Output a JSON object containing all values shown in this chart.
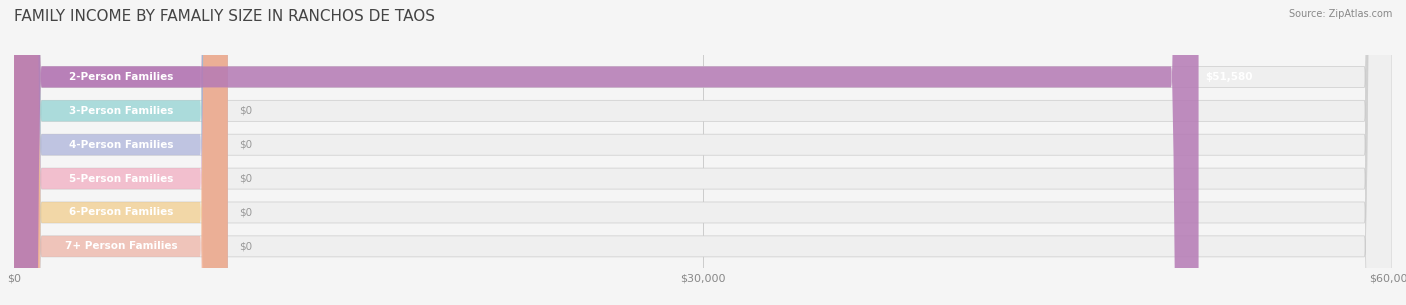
{
  "title": "FAMILY INCOME BY FAMALIY SIZE IN RANCHOS DE TAOS",
  "source": "Source: ZipAtlas.com",
  "categories": [
    "2-Person Families",
    "3-Person Families",
    "4-Person Families",
    "5-Person Families",
    "6-Person Families",
    "7+ Person Families"
  ],
  "values": [
    51580,
    0,
    0,
    0,
    0,
    0
  ],
  "bar_colors": [
    "#b57ab5",
    "#7ecece",
    "#a0a8d8",
    "#f5a0b8",
    "#f5c878",
    "#f0a898"
  ],
  "label_colors": [
    "#b57ab5",
    "#7ecece",
    "#a0a8d8",
    "#f5a0b8",
    "#f5c878",
    "#f0a898"
  ],
  "value_labels": [
    "$51,580",
    "$0",
    "$0",
    "$0",
    "$0",
    "$0"
  ],
  "xlim": [
    0,
    60000
  ],
  "xticks": [
    0,
    30000,
    60000
  ],
  "xticklabels": [
    "$0",
    "$30,000",
    "$60,000"
  ],
  "background_color": "#f5f5f5",
  "bar_bg_color": "#efefef",
  "title_fontsize": 11,
  "label_fontsize": 7.5,
  "value_fontsize": 7.5,
  "source_fontsize": 7
}
